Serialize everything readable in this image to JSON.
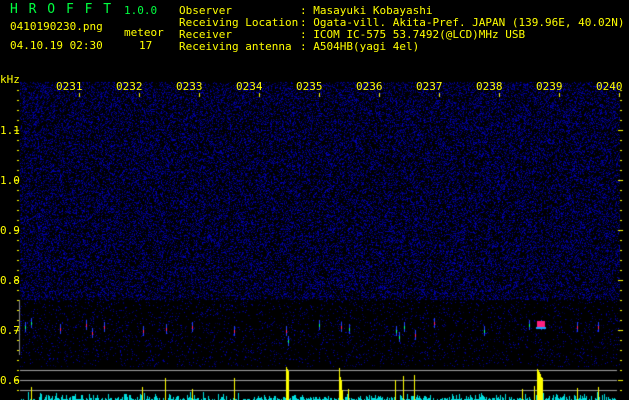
{
  "app": {
    "title": "H R O F F T",
    "version": "1.0.0"
  },
  "file": {
    "name": "0410190230.png",
    "datetime": "04.10.19 02:30"
  },
  "meteor": {
    "label": "meteor",
    "count": "17"
  },
  "info": [
    {
      "label": "Observer",
      "value": ": Masayuki Kobayashi"
    },
    {
      "label": "Receiving Location",
      "value": ": Ogata-vill. Akita-Pref. JAPAN (139.96E, 40.02N)"
    },
    {
      "label": "Receiver",
      "value": ": ICOM IC-575 53.7492(@LCD)MHz USB"
    },
    {
      "label": "Receiving antenna",
      "value": ": A504HB(yagi 4el)"
    }
  ],
  "axis": {
    "unit": "kHz",
    "time_labels": [
      "0231",
      "0232",
      "0233",
      "0234",
      "0235",
      "0236",
      "0237",
      "0238",
      "0239",
      "0240"
    ],
    "freq_labels": [
      "1.1",
      "1.0",
      "0.9",
      "0.8",
      "0.7",
      "0.6"
    ]
  },
  "colors": {
    "text": "#ffff00",
    "title": "#00ff40",
    "noise": "#1010a0",
    "bar": "#ffff00",
    "bar_low": "#00e0e0"
  }
}
